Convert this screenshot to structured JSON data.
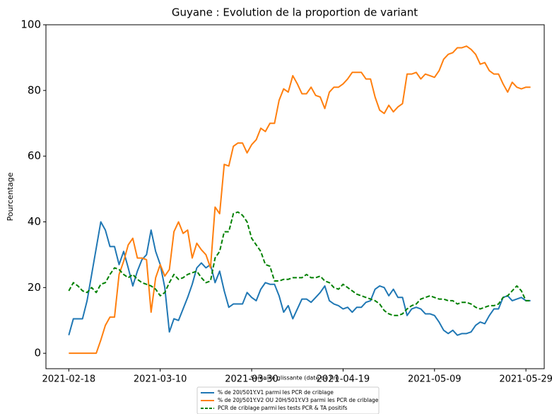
{
  "chart_data": {
    "type": "line",
    "title": "Guyane : Evolution de la proportion de variant",
    "xlabel": "Semaine glissante (date de fin)",
    "ylabel": "Pourcentage",
    "x": [
      "2021-02-18",
      "2021-02-19",
      "2021-02-20",
      "2021-02-21",
      "2021-02-22",
      "2021-02-23",
      "2021-02-24",
      "2021-02-25",
      "2021-02-26",
      "2021-02-27",
      "2021-02-28",
      "2021-03-01",
      "2021-03-02",
      "2021-03-03",
      "2021-03-04",
      "2021-03-05",
      "2021-03-06",
      "2021-03-07",
      "2021-03-08",
      "2021-03-09",
      "2021-03-10",
      "2021-03-11",
      "2021-03-12",
      "2021-03-13",
      "2021-03-14",
      "2021-03-15",
      "2021-03-16",
      "2021-03-17",
      "2021-03-18",
      "2021-03-19",
      "2021-03-20",
      "2021-03-21",
      "2021-03-22",
      "2021-03-23",
      "2021-03-24",
      "2021-03-25",
      "2021-03-26",
      "2021-03-27",
      "2021-03-28",
      "2021-03-29",
      "2021-03-30",
      "2021-03-31",
      "2021-04-01",
      "2021-04-02",
      "2021-04-03",
      "2021-04-04",
      "2021-04-05",
      "2021-04-06",
      "2021-04-07",
      "2021-04-08",
      "2021-04-09",
      "2021-04-10",
      "2021-04-11",
      "2021-04-12",
      "2021-04-13",
      "2021-04-14",
      "2021-04-15",
      "2021-04-16",
      "2021-04-17",
      "2021-04-18",
      "2021-04-19",
      "2021-04-20",
      "2021-04-21",
      "2021-04-22",
      "2021-04-23",
      "2021-04-24",
      "2021-04-25",
      "2021-04-26",
      "2021-04-27",
      "2021-04-28",
      "2021-04-29",
      "2021-04-30",
      "2021-05-01",
      "2021-05-02",
      "2021-05-03",
      "2021-05-04",
      "2021-05-05",
      "2021-05-06",
      "2021-05-07",
      "2021-05-08",
      "2021-05-09",
      "2021-05-10",
      "2021-05-11",
      "2021-05-12",
      "2021-05-13",
      "2021-05-14",
      "2021-05-15",
      "2021-05-16",
      "2021-05-17",
      "2021-05-18",
      "2021-05-19",
      "2021-05-20",
      "2021-05-21",
      "2021-05-22",
      "2021-05-23",
      "2021-05-24",
      "2021-05-25",
      "2021-05-26",
      "2021-05-27",
      "2021-05-28",
      "2021-05-29",
      "2021-05-30"
    ],
    "series": [
      {
        "name": "% de 20I/501Y.V1 parmi les PCR de criblage",
        "color": "#1f77b4",
        "linestyle": "solid",
        "values": [
          5.5,
          10.5,
          10.5,
          10.5,
          16,
          24,
          32,
          40,
          37.5,
          32.5,
          32.5,
          27,
          31,
          26,
          20.5,
          25,
          28.5,
          30,
          37.5,
          31,
          27,
          20,
          6.5,
          10.5,
          10,
          13.5,
          17,
          21,
          26,
          27.5,
          26,
          27,
          21.5,
          25,
          19,
          14,
          15,
          15,
          15,
          18.5,
          17,
          16,
          19.5,
          21.5,
          21,
          21,
          17.5,
          12.5,
          14.5,
          10.5,
          13.5,
          16.5,
          16.5,
          15.5,
          17,
          18.5,
          20.5,
          16,
          15,
          14.5,
          13.5,
          14,
          12.5,
          14,
          14,
          15.5,
          16,
          19.5,
          20.5,
          20,
          17.5,
          19.5,
          17,
          17,
          11.5,
          13.5,
          14,
          13.5,
          12,
          12,
          11.5,
          9.5,
          7,
          6,
          7,
          5.5,
          6,
          6,
          6.5,
          8.5,
          9.5,
          9,
          11.5,
          13.5,
          13.5,
          17,
          17.5,
          16,
          16.5,
          17,
          16,
          16
        ]
      },
      {
        "name": "% de 20J/501Y.V2 OU 20H/501Y.V3 parmi les PCR de criblage",
        "color": "#ff7f0e",
        "linestyle": "solid",
        "values": [
          0,
          0,
          0,
          0,
          0,
          0,
          0,
          4,
          8.5,
          11,
          11,
          24,
          28,
          33,
          35,
          29,
          29,
          28.5,
          12.5,
          23,
          27,
          23.5,
          25.5,
          37,
          40,
          36.5,
          37.5,
          29,
          33.5,
          31.5,
          30,
          26,
          44.5,
          42.5,
          57.5,
          57,
          63,
          64,
          64,
          61,
          63.5,
          65,
          68.5,
          67.5,
          70,
          70,
          77,
          80.5,
          79.5,
          84.5,
          82,
          79,
          79,
          81,
          78.5,
          78,
          74.5,
          79.5,
          81,
          81,
          82,
          83.5,
          85.5,
          85.5,
          85.5,
          83.5,
          83.5,
          78,
          74,
          73,
          75.5,
          73.5,
          75,
          76,
          85,
          85,
          85.5,
          83.5,
          85,
          84.5,
          84,
          86,
          89.5,
          91,
          91.5,
          93,
          93,
          93.5,
          92.5,
          91,
          88,
          88.5,
          86,
          85,
          85,
          82,
          79.5,
          82.5,
          81,
          80.5,
          81,
          81
        ]
      },
      {
        "name": "PCR de criblage parmi les tests PCR & TA positifs",
        "color": "#008000",
        "linestyle": "dashed",
        "values": [
          19,
          21.5,
          20.5,
          19,
          18.5,
          20,
          18.5,
          21,
          21.5,
          24,
          26,
          25.5,
          24,
          23,
          24,
          22.5,
          21.5,
          21,
          20.5,
          19.5,
          17.5,
          18.5,
          21.5,
          24,
          22.5,
          23,
          24,
          24.5,
          25,
          23,
          21.5,
          22,
          29,
          31,
          37,
          37,
          42.5,
          43,
          42,
          40,
          35,
          33,
          31,
          27,
          26.5,
          22,
          22,
          22.5,
          22.5,
          23,
          23,
          23,
          24,
          23,
          23,
          23.5,
          22,
          21.5,
          20,
          19.5,
          21,
          20,
          19,
          18,
          17.5,
          17,
          16.5,
          16,
          15,
          13,
          12,
          11.5,
          11.5,
          12,
          13.5,
          14.5,
          15,
          16.5,
          17,
          17.5,
          17,
          16.5,
          16.5,
          16,
          16,
          15,
          15.5,
          15.5,
          15,
          14,
          13.5,
          14,
          14.5,
          14.5,
          15,
          17,
          17.5,
          19,
          20.5,
          19,
          16,
          16
        ]
      }
    ],
    "xlim": [
      "2021-02-13",
      "2021-06-02"
    ],
    "xticks": [
      "2021-02-18",
      "2021-03-10",
      "2021-03-30",
      "2021-04-19",
      "2021-05-09",
      "2021-05-29"
    ],
    "ylim": [
      -4.7,
      100
    ],
    "yticks": [
      0,
      20,
      40,
      60,
      80,
      100
    ],
    "grid": false,
    "legend": "bottom"
  }
}
